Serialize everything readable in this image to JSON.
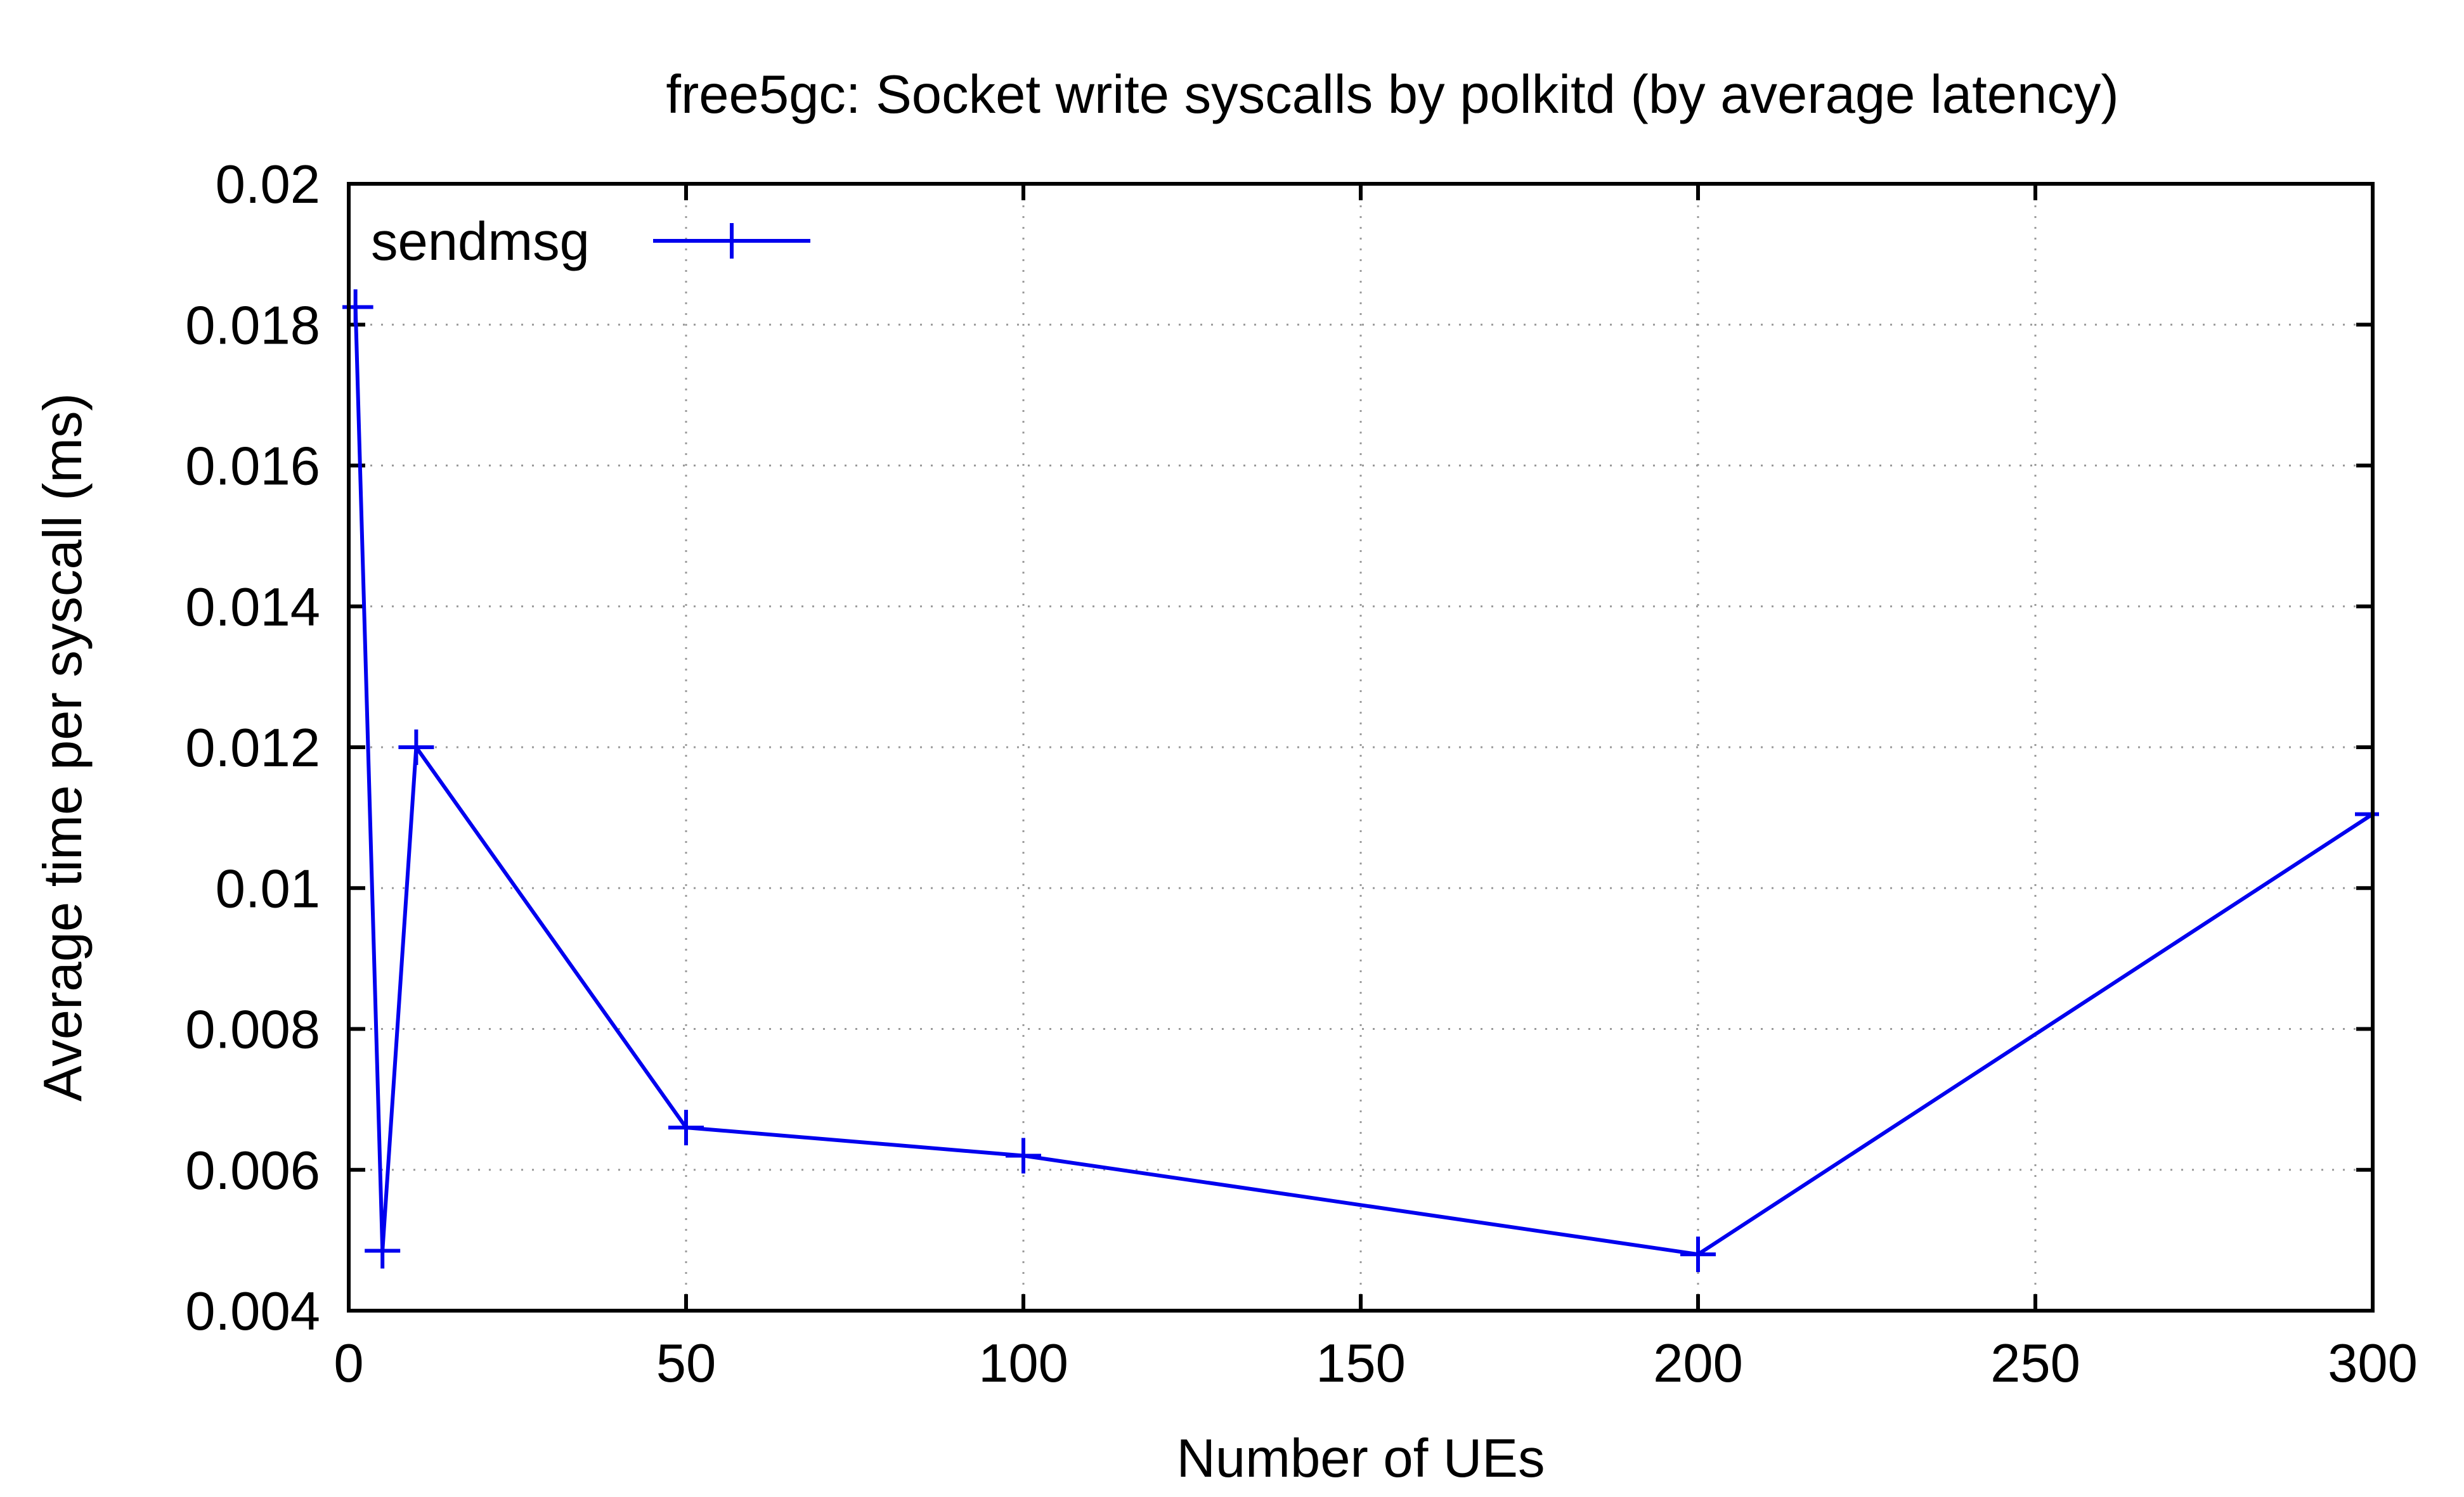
{
  "chart_data": {
    "type": "line",
    "title": "free5gc: Socket write syscalls by polkitd (by average latency)",
    "xlabel": "Number of UEs",
    "ylabel": "Average time per syscall (ms)",
    "xlim": [
      0,
      300
    ],
    "ylim": [
      0.004,
      0.02
    ],
    "xticks": [
      0,
      50,
      100,
      150,
      200,
      250,
      300
    ],
    "xtick_labels": [
      "0",
      "50",
      "100",
      "150",
      "200",
      "250",
      "300"
    ],
    "yticks": [
      0.004,
      0.006,
      0.008,
      0.01,
      0.012,
      0.014,
      0.016,
      0.018,
      0.02
    ],
    "ytick_labels": [
      "0.004",
      "0.006",
      "0.008",
      "0.01",
      "0.012",
      "0.014",
      "0.016",
      "0.018",
      "0.02"
    ],
    "grid": true,
    "legend_position": "top-left",
    "series": [
      {
        "name": "sendmsg",
        "color": "#0000ee",
        "marker": "plus",
        "x": [
          1,
          5,
          10,
          50,
          100,
          200,
          300
        ],
        "y": [
          0.01825,
          0.00485,
          0.012,
          0.0066,
          0.0062,
          0.0048,
          0.01105
        ]
      }
    ]
  }
}
